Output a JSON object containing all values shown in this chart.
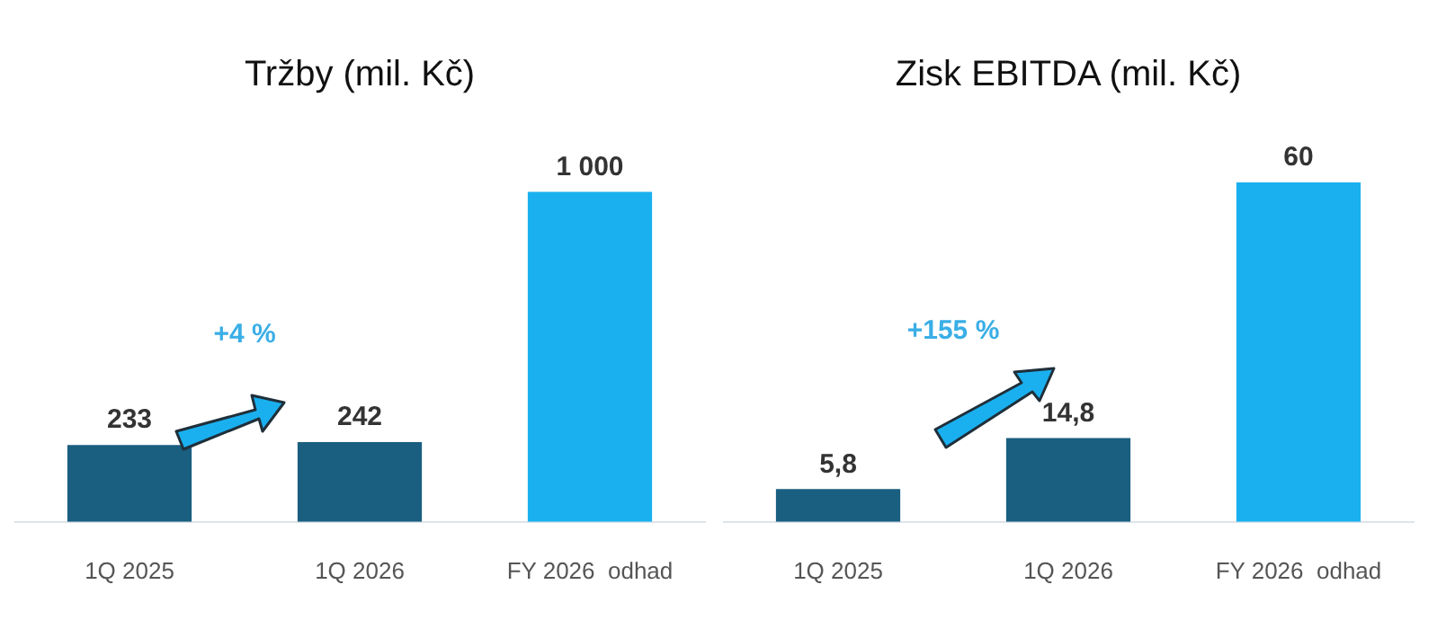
{
  "chart_data": [
    {
      "type": "bar",
      "title": "Tržby (mil. Kč)",
      "categories": [
        "1Q 2025",
        "1Q 2026",
        "FY 2026  odhad"
      ],
      "values": [
        233,
        242,
        1000
      ],
      "value_labels": [
        "233",
        "242",
        "1 000"
      ],
      "colors": [
        "#1a5e80",
        "#1a5e80",
        "#1ab0ef"
      ],
      "annotations": [
        "+4 %"
      ]
    },
    {
      "type": "bar",
      "title": "Zisk EBITDA (mil. Kč)",
      "categories": [
        "1Q 2025",
        "1Q 2026",
        "FY 2026  odhad"
      ],
      "values": [
        5.8,
        14.8,
        60
      ],
      "value_labels": [
        "5,8",
        "14,8",
        "60"
      ],
      "colors": [
        "#1a5e80",
        "#1a5e80",
        "#1ab0ef"
      ],
      "annotations": [
        "+155 %"
      ]
    }
  ]
}
